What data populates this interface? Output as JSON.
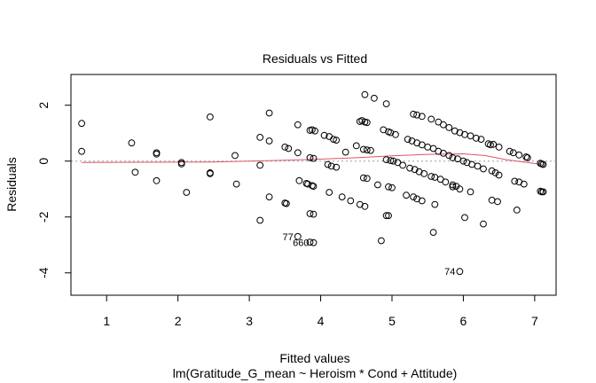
{
  "chart_data": {
    "type": "scatter",
    "title": "Residuals vs Fitted",
    "xlabel": "Fitted values",
    "subtitle": "lm(Gratitude_G_mean ~ Heroism * Cond + Attitude)",
    "ylabel": "Residuals",
    "xlim": [
      0.5,
      7.3
    ],
    "ylim": [
      -4.8,
      3.1
    ],
    "xticks": [
      1,
      2,
      3,
      4,
      5,
      6,
      7
    ],
    "yticks": [
      -4,
      -2,
      0,
      2
    ],
    "zero_line": true,
    "point_color": "#000000",
    "smoother_color": "#df536b",
    "points": [
      [
        0.65,
        1.35
      ],
      [
        0.65,
        0.35
      ],
      [
        1.35,
        0.65
      ],
      [
        1.4,
        -0.4
      ],
      [
        1.7,
        0.3
      ],
      [
        1.7,
        0.25
      ],
      [
        1.7,
        -0.7
      ],
      [
        2.05,
        -0.05
      ],
      [
        2.05,
        -0.1
      ],
      [
        2.12,
        -1.12
      ],
      [
        2.45,
        1.58
      ],
      [
        2.45,
        -0.42
      ],
      [
        2.45,
        -0.45
      ],
      [
        2.8,
        0.2
      ],
      [
        2.82,
        -0.82
      ],
      [
        3.15,
        0.85
      ],
      [
        3.15,
        -0.15
      ],
      [
        3.15,
        -2.12
      ],
      [
        3.28,
        1.72
      ],
      [
        3.28,
        0.72
      ],
      [
        3.28,
        -1.28
      ],
      [
        3.5,
        0.5
      ],
      [
        3.55,
        0.45
      ],
      [
        3.5,
        -1.5
      ],
      [
        3.52,
        -1.52
      ],
      [
        3.68,
        1.3
      ],
      [
        3.68,
        0.3
      ],
      [
        3.7,
        -0.7
      ],
      [
        3.68,
        -2.7
      ],
      [
        3.8,
        -0.8
      ],
      [
        3.82,
        -0.82
      ],
      [
        3.88,
        -0.88
      ],
      [
        3.9,
        -0.9
      ],
      [
        3.85,
        1.1
      ],
      [
        3.88,
        1.12
      ],
      [
        3.92,
        1.08
      ],
      [
        3.85,
        0.12
      ],
      [
        3.9,
        0.1
      ],
      [
        3.85,
        -1.88
      ],
      [
        3.9,
        -1.9
      ],
      [
        3.85,
        -2.9
      ],
      [
        3.9,
        -2.92
      ],
      [
        4.05,
        0.92
      ],
      [
        4.12,
        0.88
      ],
      [
        4.18,
        0.78
      ],
      [
        4.22,
        0.75
      ],
      [
        4.1,
        -0.12
      ],
      [
        4.15,
        -0.18
      ],
      [
        4.22,
        -0.22
      ],
      [
        4.12,
        -1.12
      ],
      [
        4.3,
        -1.28
      ],
      [
        4.42,
        -1.42
      ],
      [
        4.35,
        0.32
      ],
      [
        4.5,
        0.55
      ],
      [
        4.55,
        1.42
      ],
      [
        4.58,
        1.45
      ],
      [
        4.62,
        1.4
      ],
      [
        4.65,
        1.38
      ],
      [
        4.6,
        0.42
      ],
      [
        4.65,
        0.4
      ],
      [
        4.7,
        0.38
      ],
      [
        4.6,
        -0.6
      ],
      [
        4.65,
        -0.62
      ],
      [
        4.55,
        -1.55
      ],
      [
        4.62,
        -1.62
      ],
      [
        4.62,
        2.38
      ],
      [
        4.75,
        2.25
      ],
      [
        4.8,
        -0.85
      ],
      [
        4.85,
        -2.85
      ],
      [
        4.88,
        1.12
      ],
      [
        4.95,
        1.05
      ],
      [
        4.98,
        1.02
      ],
      [
        5.05,
        0.95
      ],
      [
        4.92,
        0.05
      ],
      [
        4.98,
        0.02
      ],
      [
        5.02,
        0.0
      ],
      [
        5.08,
        -0.05
      ],
      [
        4.92,
        -1.95
      ],
      [
        4.95,
        -1.95
      ],
      [
        4.92,
        2.05
      ],
      [
        4.95,
        -0.92
      ],
      [
        5.0,
        -0.95
      ],
      [
        5.15,
        -0.15
      ],
      [
        5.22,
        0.78
      ],
      [
        5.28,
        0.72
      ],
      [
        5.25,
        -0.25
      ],
      [
        5.32,
        -0.3
      ],
      [
        5.38,
        -0.38
      ],
      [
        5.2,
        -1.22
      ],
      [
        5.3,
        -1.28
      ],
      [
        5.35,
        -1.35
      ],
      [
        5.3,
        1.68
      ],
      [
        5.35,
        1.65
      ],
      [
        5.42,
        1.6
      ],
      [
        5.35,
        0.65
      ],
      [
        5.42,
        0.58
      ],
      [
        5.5,
        0.5
      ],
      [
        5.58,
        0.45
      ],
      [
        5.45,
        -0.45
      ],
      [
        5.55,
        -0.55
      ],
      [
        5.6,
        -0.58
      ],
      [
        5.68,
        -0.65
      ],
      [
        5.42,
        -1.42
      ],
      [
        5.6,
        -1.55
      ],
      [
        5.55,
        1.5
      ],
      [
        5.65,
        1.4
      ],
      [
        5.72,
        1.3
      ],
      [
        5.8,
        1.2
      ],
      [
        5.58,
        -2.55
      ],
      [
        5.65,
        0.35
      ],
      [
        5.72,
        0.28
      ],
      [
        5.8,
        0.2
      ],
      [
        5.85,
        0.12
      ],
      [
        5.75,
        -0.75
      ],
      [
        5.85,
        -0.85
      ],
      [
        5.9,
        -0.9
      ],
      [
        5.85,
        -0.92
      ],
      [
        5.95,
        -1.0
      ],
      [
        6.1,
        -1.1
      ],
      [
        5.95,
        -3.95
      ],
      [
        5.88,
        1.08
      ],
      [
        5.95,
        1.02
      ],
      [
        6.02,
        0.95
      ],
      [
        5.92,
        0.08
      ],
      [
        6.0,
        0.0
      ],
      [
        6.05,
        -0.05
      ],
      [
        6.02,
        -2.02
      ],
      [
        6.1,
        0.9
      ],
      [
        6.18,
        0.82
      ],
      [
        6.25,
        0.78
      ],
      [
        6.12,
        -0.12
      ],
      [
        6.2,
        -0.18
      ],
      [
        6.28,
        -0.28
      ],
      [
        6.28,
        -2.25
      ],
      [
        6.35,
        0.62
      ],
      [
        6.38,
        0.58
      ],
      [
        6.42,
        0.6
      ],
      [
        6.5,
        0.5
      ],
      [
        6.4,
        -0.35
      ],
      [
        6.45,
        -0.42
      ],
      [
        6.5,
        -0.5
      ],
      [
        6.4,
        -1.4
      ],
      [
        6.48,
        -1.45
      ],
      [
        6.65,
        0.35
      ],
      [
        6.7,
        0.3
      ],
      [
        6.78,
        0.22
      ],
      [
        6.72,
        -0.72
      ],
      [
        6.78,
        -0.75
      ],
      [
        6.85,
        -0.82
      ],
      [
        6.75,
        -1.75
      ],
      [
        6.9,
        0.12
      ],
      [
        6.88,
        0.15
      ],
      [
        7.08,
        -0.08
      ],
      [
        7.1,
        -0.1
      ],
      [
        7.12,
        -0.12
      ],
      [
        7.08,
        -1.08
      ],
      [
        7.1,
        -1.1
      ],
      [
        7.12,
        -1.1
      ]
    ],
    "smoother": [
      [
        0.65,
        -0.05
      ],
      [
        1.5,
        -0.04
      ],
      [
        2.5,
        -0.03
      ],
      [
        3.0,
        0.0
      ],
      [
        3.5,
        0.03
      ],
      [
        4.0,
        0.07
      ],
      [
        4.5,
        0.12
      ],
      [
        5.0,
        0.19
      ],
      [
        5.5,
        0.24
      ],
      [
        6.0,
        0.26
      ],
      [
        6.3,
        0.2
      ],
      [
        6.6,
        0.05
      ],
      [
        7.1,
        -0.12
      ]
    ],
    "labeled_points": [
      {
        "label": "77",
        "x": 3.68,
        "y": -2.7
      },
      {
        "label": "660",
        "x": 3.9,
        "y": -2.92
      },
      {
        "label": "74",
        "x": 5.95,
        "y": -3.95
      }
    ]
  }
}
